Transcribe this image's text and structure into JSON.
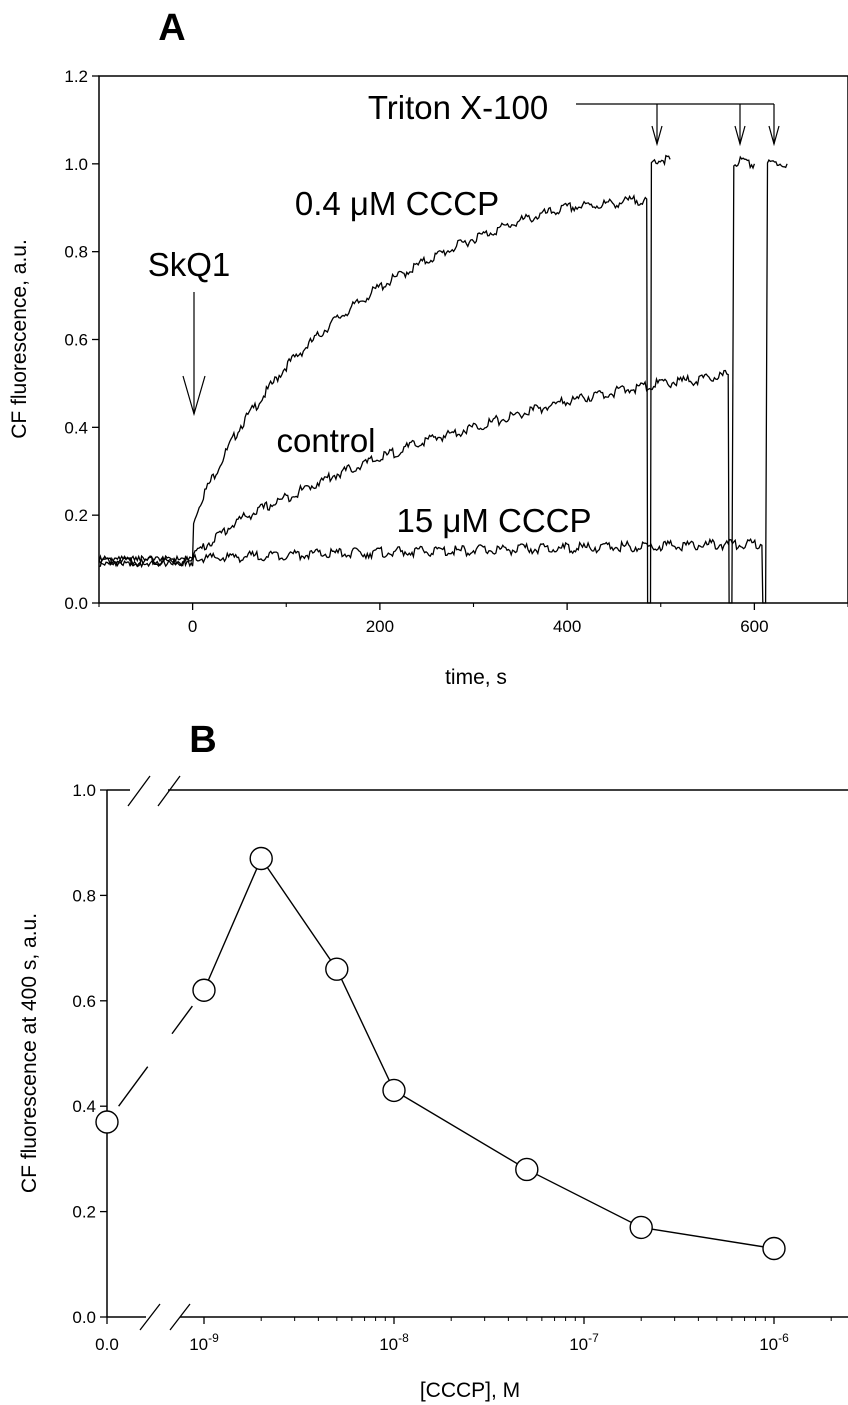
{
  "chart_data": [
    {
      "type": "line",
      "panel": "A",
      "xlabel": "time, s",
      "ylabel": "CF fluorescence, a.u.",
      "xlim": [
        -100,
        700
      ],
      "ylim": [
        0,
        1.2
      ],
      "xticks": [
        "0",
        "200",
        "400",
        "600"
      ],
      "yticks": [
        "0.0",
        "0.2",
        "0.4",
        "0.6",
        "0.8",
        "1.0",
        "1.2"
      ],
      "annotations": {
        "skq1": "SkQ1",
        "triton": "Triton X-100",
        "cccp04": "0.4 μM CCCP",
        "control": "control",
        "cccp15": "15 μM CCCP"
      },
      "series": [
        {
          "name": "0.4 μM CCCP",
          "x": [
            -100,
            -50,
            0,
            1,
            10,
            25,
            50,
            100,
            150,
            200,
            250,
            300,
            350,
            400,
            450,
            485,
            486,
            488,
            489,
            490,
            495,
            510
          ],
          "y": [
            0.095,
            0.095,
            0.095,
            0.19,
            0.24,
            0.3,
            0.4,
            0.54,
            0.64,
            0.72,
            0.78,
            0.83,
            0.87,
            0.9,
            0.91,
            0.92,
            0.0,
            0.0,
            0.0,
            1.0,
            1.01,
            1.01
          ]
        },
        {
          "name": "control",
          "x": [
            -100,
            -50,
            0,
            1,
            50,
            100,
            150,
            200,
            250,
            300,
            350,
            400,
            450,
            500,
            550,
            572,
            573,
            575,
            576,
            578,
            585,
            600
          ],
          "y": [
            0.095,
            0.095,
            0.095,
            0.11,
            0.19,
            0.24,
            0.29,
            0.33,
            0.37,
            0.4,
            0.43,
            0.46,
            0.48,
            0.5,
            0.51,
            0.52,
            0.0,
            0.0,
            0.0,
            1.0,
            1.01,
            1.0
          ]
        },
        {
          "name": "15 μM CCCP",
          "x": [
            -100,
            -50,
            0,
            1,
            100,
            200,
            300,
            400,
            500,
            608,
            609,
            611,
            612,
            614,
            620,
            635
          ],
          "y": [
            0.095,
            0.095,
            0.095,
            0.1,
            0.11,
            0.115,
            0.12,
            0.125,
            0.13,
            0.135,
            0.0,
            0.0,
            0.0,
            1.0,
            1.0,
            1.0
          ]
        }
      ]
    },
    {
      "type": "line",
      "panel": "B",
      "xlabel": "[CCCP], M",
      "ylabel": "CF fluorescence at 400 s, a.u.",
      "x_scale": "log with axis break",
      "ylim": [
        0,
        1.0
      ],
      "yticks": [
        "0.0",
        "0.2",
        "0.4",
        "0.6",
        "0.8",
        "1.0"
      ],
      "xticks": [
        {
          "base": "0.0",
          "exp": ""
        },
        {
          "base": "10",
          "exp": "-9"
        },
        {
          "base": "10",
          "exp": "-8"
        },
        {
          "base": "10",
          "exp": "-7"
        },
        {
          "base": "10",
          "exp": "-6"
        }
      ],
      "x": [
        0,
        1e-09,
        2e-09,
        5e-09,
        1e-08,
        5e-08,
        2e-07,
        1e-06
      ],
      "y": [
        0.37,
        0.62,
        0.87,
        0.66,
        0.43,
        0.28,
        0.17,
        0.13
      ]
    }
  ]
}
